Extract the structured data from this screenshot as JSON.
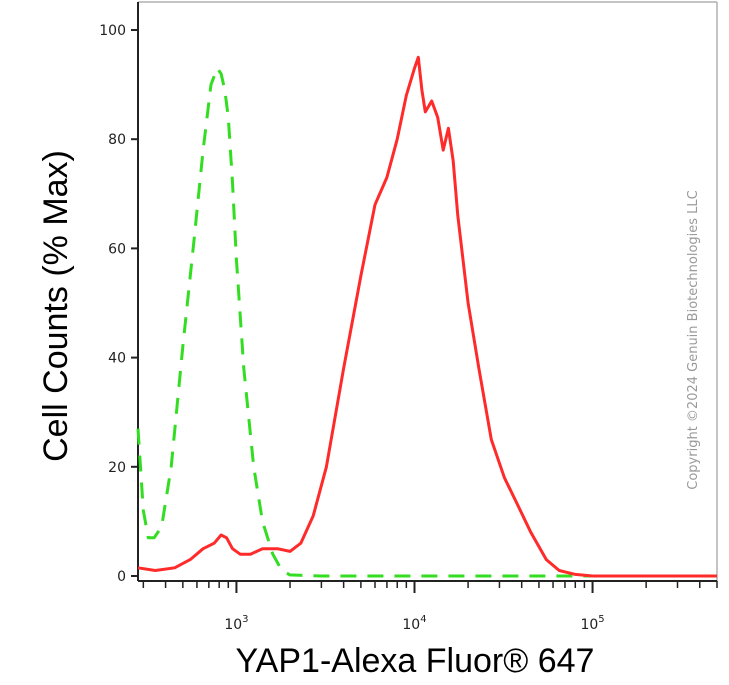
{
  "chart_data": {
    "type": "line",
    "title": "",
    "xlabel": "YAP1-Alexa Fluor® 647",
    "ylabel": "Cell Counts (% Max)",
    "xscale": "log",
    "xlim": [
      280,
      500000
    ],
    "ylim": [
      0,
      100
    ],
    "yticks": [
      0,
      20,
      40,
      60,
      80,
      100
    ],
    "xticks": [
      {
        "value": 1000,
        "label_base": "10",
        "label_exp": "3"
      },
      {
        "value": 10000,
        "label_base": "10",
        "label_exp": "4"
      },
      {
        "value": 100000,
        "label_base": "10",
        "label_exp": "5"
      }
    ],
    "grid": false,
    "legend": "none",
    "series": [
      {
        "style": "dashed",
        "color": "#33dd22",
        "x": [
          280,
          300,
          320,
          345,
          380,
          430,
          500,
          580,
          650,
          720,
          780,
          820,
          860,
          900,
          950,
          1000,
          1100,
          1250,
          1400,
          1600,
          1800,
          2000,
          2400,
          3000,
          5000,
          10000,
          30000,
          100000,
          500000
        ],
        "y": [
          27,
          12,
          7,
          7,
          9,
          20,
          42,
          62,
          78,
          90,
          93,
          92,
          89,
          84,
          72,
          58,
          38,
          20,
          10,
          4,
          1,
          0.2,
          0.1,
          0,
          0,
          0,
          0,
          0,
          0
        ]
      },
      {
        "style": "solid",
        "color": "#ff2a2a",
        "x": [
          280,
          350,
          450,
          550,
          650,
          750,
          820,
          880,
          950,
          1050,
          1200,
          1400,
          1700,
          2000,
          2300,
          2700,
          3200,
          4000,
          5000,
          6000,
          7000,
          8000,
          9000,
          10000,
          10500,
          11000,
          11500,
          12500,
          13500,
          14500,
          15500,
          16500,
          17500,
          20000,
          23000,
          27000,
          32000,
          38000,
          45000,
          55000,
          65000,
          80000,
          100000,
          200000,
          500000
        ],
        "y": [
          1.5,
          1,
          1.5,
          3,
          5,
          6,
          7.5,
          7,
          5,
          4,
          4,
          5,
          5,
          4.5,
          6,
          11,
          20,
          38,
          55,
          68,
          73,
          80,
          88,
          93,
          95,
          89,
          85,
          87,
          84,
          78,
          82,
          76,
          66,
          50,
          38,
          25,
          18,
          13,
          8,
          3,
          1,
          0.3,
          0,
          0,
          0
        ]
      }
    ]
  },
  "watermark": "Copyright ©2024 Genuin Biotechnologies LLC",
  "colors": {
    "axis": "#222222",
    "frame": "#b0b0b0"
  }
}
